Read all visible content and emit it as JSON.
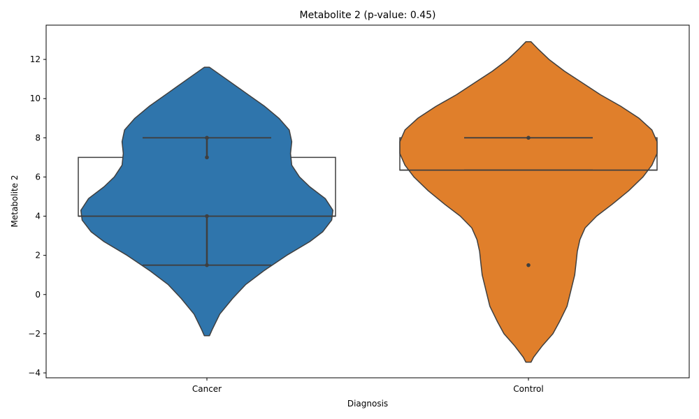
{
  "chart_data": {
    "type": "violin",
    "title": "Metabolite 2 (p-value: 0.45)",
    "xlabel": "Diagnosis",
    "ylabel": "Metabolite 2",
    "ylim": [
      -4.25,
      13.75
    ],
    "yticks": [
      -4,
      -2,
      0,
      2,
      4,
      6,
      8,
      10,
      12
    ],
    "ytick_labels": [
      "−4",
      "−2",
      "0",
      "2",
      "4",
      "6",
      "8",
      "10",
      "12"
    ],
    "categories": [
      "Cancer",
      "Control"
    ],
    "colors": {
      "Cancer": "#2f75ac",
      "Control": "#e07f2b",
      "edge": "#3f3f3f"
    },
    "groups": [
      {
        "name": "Cancer",
        "points": [
          8,
          7,
          4,
          1.5
        ],
        "box": {
          "q1": 4,
          "q3": 7,
          "median": 4
        },
        "stat_lines": [
          8,
          1.5
        ],
        "whisker": [
          1.5,
          8
        ],
        "density_range": [
          -2.1,
          11.6
        ],
        "density": [
          [
            -2.1,
            0.02
          ],
          [
            -1.8,
            0.04
          ],
          [
            -1.0,
            0.1
          ],
          [
            -0.2,
            0.2
          ],
          [
            0.5,
            0.3
          ],
          [
            1.2,
            0.44
          ],
          [
            2.0,
            0.62
          ],
          [
            2.7,
            0.8
          ],
          [
            3.2,
            0.9
          ],
          [
            3.8,
            0.97
          ],
          [
            4.3,
            0.98
          ],
          [
            4.9,
            0.92
          ],
          [
            5.5,
            0.8
          ],
          [
            6.0,
            0.72
          ],
          [
            6.6,
            0.66
          ],
          [
            7.2,
            0.65
          ],
          [
            7.8,
            0.66
          ],
          [
            8.4,
            0.64
          ],
          [
            9.0,
            0.56
          ],
          [
            9.6,
            0.45
          ],
          [
            10.3,
            0.3
          ],
          [
            11.0,
            0.15
          ],
          [
            11.6,
            0.02
          ]
        ]
      },
      {
        "name": "Control",
        "points": [
          8,
          1.5
        ],
        "box": {
          "q1": 6.35,
          "q3": 8,
          "median": 6.35
        },
        "stat_lines": [
          8,
          6.35
        ],
        "whisker": [
          1.5,
          8
        ],
        "density_range": [
          -3.45,
          12.9
        ],
        "density": [
          [
            -3.45,
            0.02
          ],
          [
            -3.2,
            0.04
          ],
          [
            -2.6,
            0.11
          ],
          [
            -2.0,
            0.19
          ],
          [
            -1.4,
            0.24
          ],
          [
            -0.6,
            0.3
          ],
          [
            0.2,
            0.33
          ],
          [
            1.0,
            0.36
          ],
          [
            1.6,
            0.37
          ],
          [
            2.2,
            0.38
          ],
          [
            2.8,
            0.4
          ],
          [
            3.4,
            0.44
          ],
          [
            4.0,
            0.53
          ],
          [
            4.6,
            0.65
          ],
          [
            5.3,
            0.78
          ],
          [
            6.0,
            0.89
          ],
          [
            6.6,
            0.96
          ],
          [
            7.2,
            1.0
          ],
          [
            7.8,
            1.0
          ],
          [
            8.4,
            0.96
          ],
          [
            9.0,
            0.86
          ],
          [
            9.6,
            0.72
          ],
          [
            10.2,
            0.56
          ],
          [
            10.8,
            0.42
          ],
          [
            11.4,
            0.28
          ],
          [
            12.0,
            0.16
          ],
          [
            12.5,
            0.08
          ],
          [
            12.9,
            0.02
          ]
        ]
      }
    ]
  }
}
